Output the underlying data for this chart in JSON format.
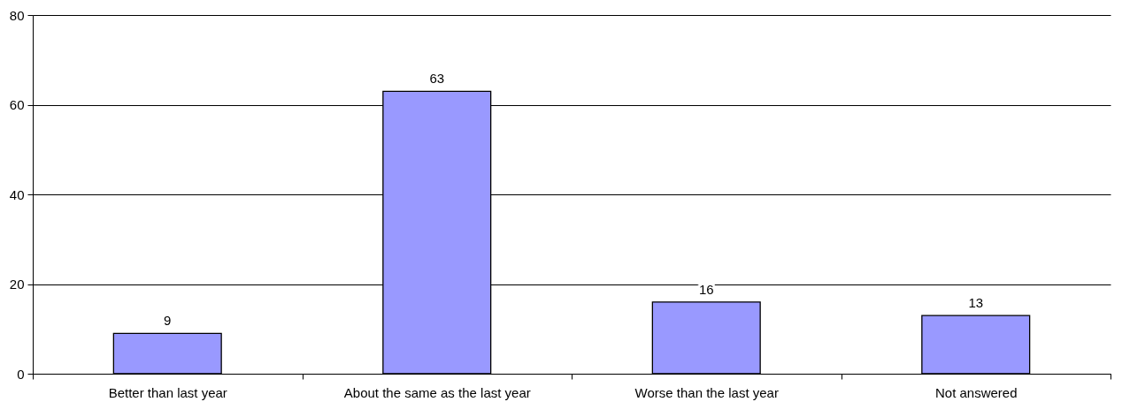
{
  "chart_data": {
    "type": "bar",
    "categories": [
      "Better than last year",
      "About the same as the last year",
      "Worse than the last year",
      "Not answered"
    ],
    "values": [
      9,
      63,
      16,
      13
    ],
    "color": "#9999ff",
    "ylim": [
      0,
      80
    ],
    "yticks": [
      0,
      20,
      40,
      60,
      80
    ],
    "grid": "y",
    "data_labels": true
  }
}
